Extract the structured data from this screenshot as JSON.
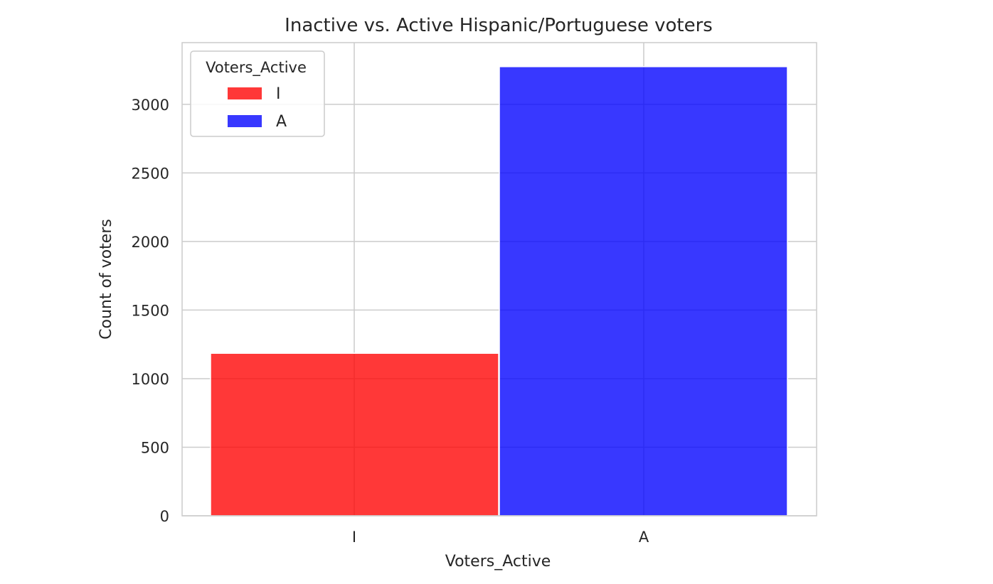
{
  "chart_data": {
    "type": "bar",
    "title": "Inactive vs. Active Hispanic/Portuguese voters",
    "xlabel": "Voters_Active",
    "ylabel": "Count of voters",
    "categories": [
      "I",
      "A"
    ],
    "values": [
      1185,
      3275
    ],
    "colors": [
      "#ff0000",
      "#0000ff"
    ],
    "bar_opacity": 0.78,
    "ylim": [
      0,
      3450
    ],
    "yticks": [
      0,
      500,
      1000,
      1500,
      2000,
      2500,
      3000
    ],
    "grid": true,
    "legend": {
      "title": "Voters_Active",
      "placement": "top-left",
      "entries": [
        {
          "label": "I",
          "color": "#ff0000"
        },
        {
          "label": "A",
          "color": "#0000ff"
        }
      ]
    }
  }
}
